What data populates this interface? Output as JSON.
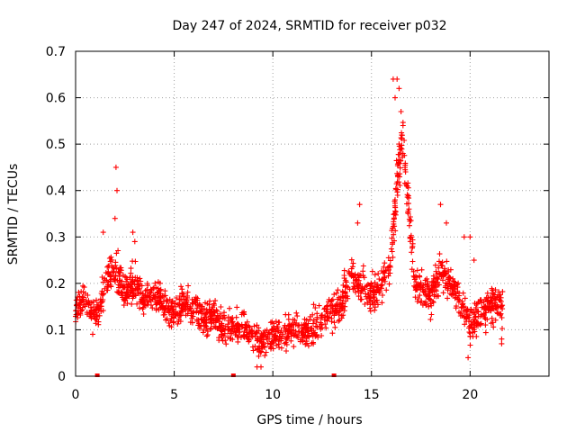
{
  "chart_data": {
    "type": "scatter",
    "title": "Day 247 of 2024, SRMTID for receiver p032",
    "xlabel": "GPS time / hours",
    "ylabel": "SRMTID / TECUs",
    "xlim": [
      0,
      24
    ],
    "ylim": [
      0,
      0.7
    ],
    "x_ticks": [
      0,
      5,
      10,
      15,
      20
    ],
    "y_ticks": [
      0,
      0.1,
      0.2,
      0.3,
      0.4,
      0.5,
      0.6,
      0.7
    ],
    "x_tick_labels": [
      "0",
      "5",
      "10",
      "15",
      "20"
    ],
    "y_tick_labels": [
      "0",
      "0.1",
      "0.2",
      "0.3",
      "0.4",
      "0.5",
      "0.6",
      "0.7"
    ],
    "grid": true,
    "marker": "+",
    "series_color": "#ff0000",
    "data_gaps_x": [
      1.1,
      8.0,
      13.1
    ],
    "trend": {
      "x": [
        0.0,
        0.5,
        1.0,
        1.5,
        2.0,
        2.5,
        3.0,
        3.5,
        4.0,
        4.5,
        5.0,
        5.5,
        6.0,
        6.5,
        7.0,
        7.5,
        8.0,
        8.5,
        9.0,
        9.5,
        10.0,
        10.5,
        11.0,
        11.5,
        12.0,
        12.5,
        13.0,
        13.5,
        14.0,
        14.5,
        15.0,
        15.5,
        16.0,
        16.3,
        16.6,
        16.9,
        17.2,
        17.6,
        18.0,
        18.5,
        19.0,
        19.5,
        20.0,
        20.5,
        21.0,
        21.5,
        21.7
      ],
      "y": [
        0.14,
        0.17,
        0.12,
        0.2,
        0.23,
        0.18,
        0.2,
        0.16,
        0.18,
        0.15,
        0.14,
        0.16,
        0.15,
        0.12,
        0.13,
        0.1,
        0.1,
        0.11,
        0.08,
        0.07,
        0.09,
        0.09,
        0.1,
        0.09,
        0.1,
        0.12,
        0.13,
        0.16,
        0.22,
        0.19,
        0.17,
        0.2,
        0.25,
        0.42,
        0.52,
        0.35,
        0.2,
        0.18,
        0.17,
        0.22,
        0.2,
        0.16,
        0.11,
        0.14,
        0.15,
        0.16,
        0.15
      ]
    },
    "spikes": [
      {
        "x": 2.05,
        "y": 0.45
      },
      {
        "x": 2.1,
        "y": 0.4
      },
      {
        "x": 2.0,
        "y": 0.34
      },
      {
        "x": 1.4,
        "y": 0.31
      },
      {
        "x": 2.9,
        "y": 0.31
      },
      {
        "x": 3.0,
        "y": 0.29
      },
      {
        "x": 14.4,
        "y": 0.37
      },
      {
        "x": 14.3,
        "y": 0.33
      },
      {
        "x": 16.1,
        "y": 0.64
      },
      {
        "x": 16.3,
        "y": 0.64
      },
      {
        "x": 16.4,
        "y": 0.62
      },
      {
        "x": 16.2,
        "y": 0.6
      },
      {
        "x": 16.5,
        "y": 0.57
      },
      {
        "x": 16.6,
        "y": 0.54
      },
      {
        "x": 16.4,
        "y": 0.5
      },
      {
        "x": 16.6,
        "y": 0.48
      },
      {
        "x": 16.7,
        "y": 0.45
      },
      {
        "x": 16.8,
        "y": 0.41
      },
      {
        "x": 16.2,
        "y": 0.38
      },
      {
        "x": 16.9,
        "y": 0.36
      },
      {
        "x": 18.5,
        "y": 0.37
      },
      {
        "x": 18.8,
        "y": 0.33
      },
      {
        "x": 19.7,
        "y": 0.3
      },
      {
        "x": 20.0,
        "y": 0.3
      },
      {
        "x": 20.2,
        "y": 0.25
      },
      {
        "x": 19.9,
        "y": 0.04
      },
      {
        "x": 9.2,
        "y": 0.02
      },
      {
        "x": 9.4,
        "y": 0.02
      },
      {
        "x": 21.6,
        "y": 0.07
      },
      {
        "x": 21.6,
        "y": 0.08
      }
    ],
    "spread": 0.045,
    "points_per_hour": 80,
    "seed": 247
  }
}
